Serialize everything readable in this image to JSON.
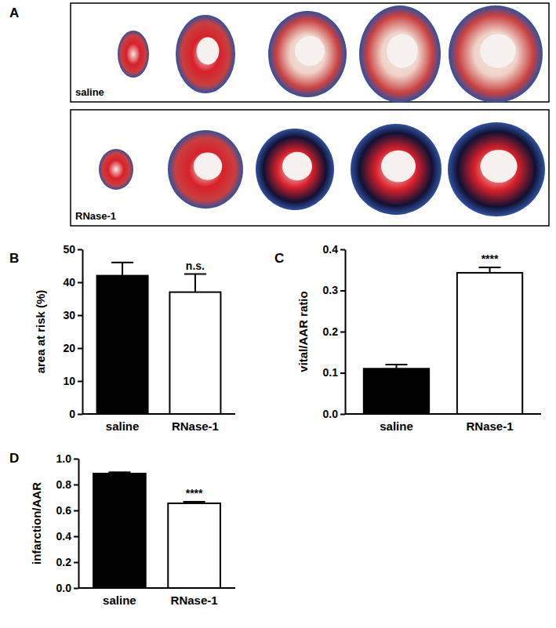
{
  "panel_a": {
    "label": "A",
    "rows": [
      "saline",
      "RNase-1"
    ]
  },
  "chart_data": [
    {
      "type": "bar",
      "title": "B",
      "y_label": "area at risk (%)",
      "categories": [
        "saline",
        "RNase-1"
      ],
      "values": [
        42,
        37
      ],
      "errors": [
        4,
        5.5
      ],
      "colors": [
        "#000000",
        "#ffffff"
      ],
      "annotation": "n.s.",
      "ylim": [
        0,
        50
      ],
      "yticks": [
        0,
        10,
        20,
        30,
        40,
        50
      ]
    },
    {
      "type": "bar",
      "title": "C",
      "y_label": "vital/AAR ratio",
      "categories": [
        "saline",
        "RNase-1"
      ],
      "values": [
        0.11,
        0.343
      ],
      "errors": [
        0.01,
        0.013
      ],
      "colors": [
        "#000000",
        "#ffffff"
      ],
      "annotation": "****",
      "ylim": [
        0,
        0.4
      ],
      "yticks": [
        {
          "value": 0,
          "label": "0.0"
        },
        0.1,
        0.2,
        0.3,
        0.4
      ]
    },
    {
      "type": "bar",
      "title": "D",
      "y_label": "infarction/AAR",
      "categories": [
        "saline",
        "RNase-1"
      ],
      "values": [
        0.885,
        0.655
      ],
      "errors": [
        0.01,
        0.012
      ],
      "colors": [
        "#000000",
        "#ffffff"
      ],
      "annotation": "****",
      "ylim": [
        0,
        1.0
      ],
      "yticks": [
        {
          "value": 0,
          "label": "0.0"
        },
        0.2,
        0.4,
        0.6,
        0.8,
        {
          "value": 1,
          "label": "1.0"
        }
      ]
    }
  ]
}
